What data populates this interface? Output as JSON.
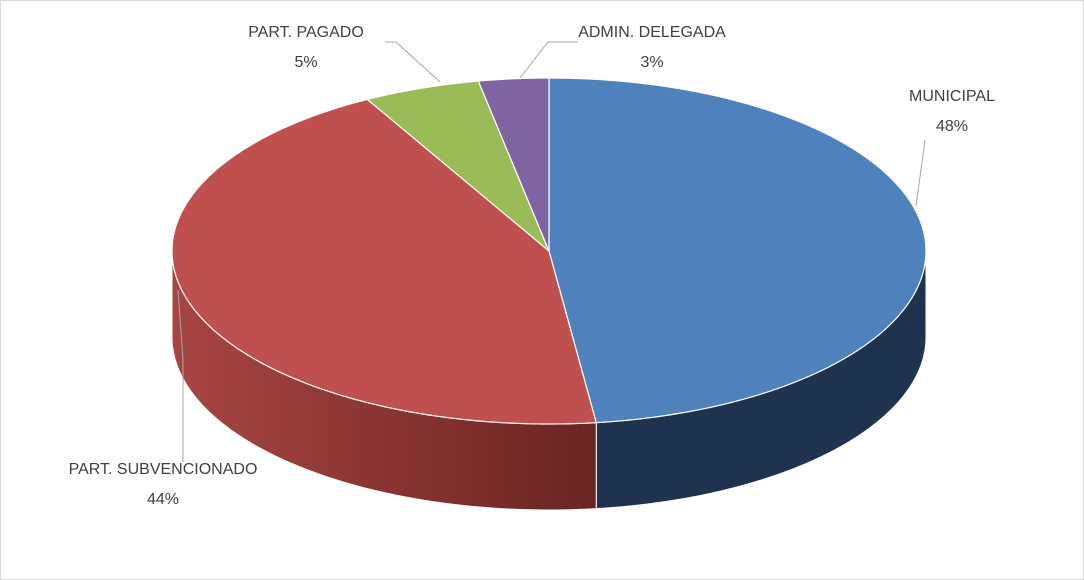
{
  "chart_data": {
    "type": "pie3d",
    "categories": [
      "MUNICIPAL",
      "PART. SUBVENCIONADO",
      "PART. PAGADO",
      "ADMIN. DELEGADA"
    ],
    "values": [
      48,
      44,
      5,
      3
    ],
    "value_labels": [
      "48%",
      "44%",
      "5%",
      "3%"
    ],
    "colors": [
      "#4f81bd",
      "#c0504d",
      "#9bbb59",
      "#8064a2"
    ],
    "side_colors": [
      "#1f3350",
      "#7e302e",
      "#5e7434",
      "#4c3c62"
    ]
  }
}
